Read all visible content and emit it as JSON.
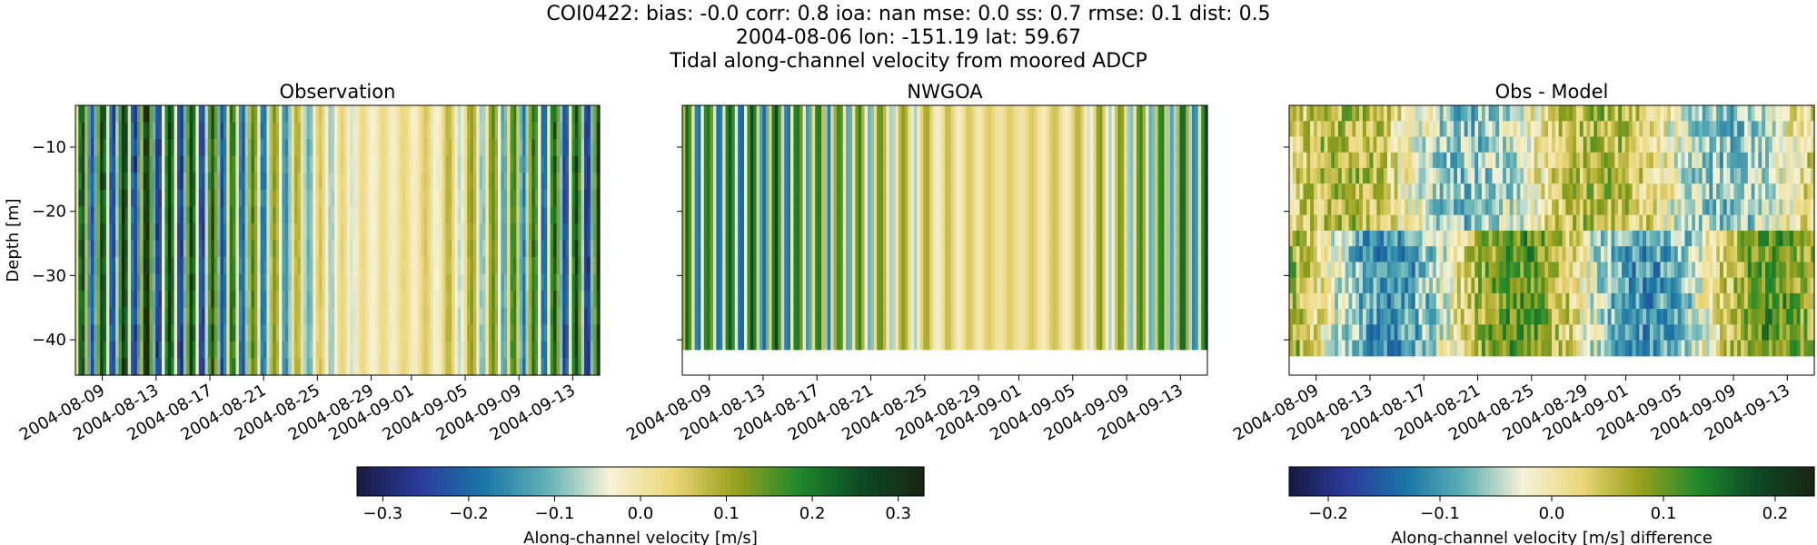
{
  "figure": {
    "title_lines": [
      "COI0422: bias: -0.0  corr: 0.8  ioa: nan  mse: 0.0  ss: 0.7  rmse: 0.1  dist: 0.5",
      "2004-08-06 lon: -151.19 lat: 59.67",
      "Tidal along-channel velocity from moored ADCP"
    ]
  },
  "colorbars": [
    {
      "label": "Along-channel velocity [m/s]",
      "ticks": [
        "−0.3",
        "−0.2",
        "−0.1",
        "0.0",
        "0.1",
        "0.2",
        "0.3"
      ],
      "range": [
        -0.33,
        0.33
      ]
    },
    {
      "label": "Along-channel velocity [m/s] difference",
      "ticks": [
        "−0.2",
        "−0.1",
        "0.0",
        "0.1",
        "0.2"
      ],
      "range": [
        -0.235,
        0.235
      ]
    }
  ],
  "colormap": [
    "#171a3e",
    "#2b3b9c",
    "#1a75a6",
    "#5fb0b5",
    "#f5f3d8",
    "#ecd77a",
    "#9aa11c",
    "#1f8a2c",
    "#0d4a25",
    "#172414"
  ],
  "chart_data": [
    {
      "type": "heatmap",
      "title": "Observation",
      "xlabel": "",
      "ylabel": "Depth [m]",
      "x_ticks": [
        "2004-08-09",
        "2004-08-13",
        "2004-08-17",
        "2004-08-21",
        "2004-08-25",
        "2004-08-29",
        "2004-09-01",
        "2004-09-05",
        "2004-09-09",
        "2004-09-13"
      ],
      "y_ticks": [
        "−10",
        "−20",
        "−30",
        "−40"
      ],
      "xlim": [
        "2004-08-07",
        "2004-09-15"
      ],
      "ylim": [
        -45.5,
        -3.5
      ],
      "data_depth_range": [
        -45.5,
        -3.5
      ],
      "value_range": [
        -0.33,
        0.33
      ],
      "colorbar": 0
    },
    {
      "type": "heatmap",
      "title": "NWGOA",
      "xlabel": "",
      "ylabel": "",
      "x_ticks": [
        "2004-08-09",
        "2004-08-13",
        "2004-08-17",
        "2004-08-21",
        "2004-08-25",
        "2004-08-29",
        "2004-09-01",
        "2004-09-05",
        "2004-09-09",
        "2004-09-13"
      ],
      "y_ticks": [],
      "xlim": [
        "2004-08-07",
        "2004-09-15"
      ],
      "ylim": [
        -45.5,
        -3.5
      ],
      "data_depth_range": [
        -41.5,
        -3.5
      ],
      "value_range": [
        -0.33,
        0.33
      ],
      "colorbar": 0
    },
    {
      "type": "heatmap",
      "title": "Obs - Model",
      "xlabel": "",
      "ylabel": "",
      "x_ticks": [
        "2004-08-09",
        "2004-08-13",
        "2004-08-17",
        "2004-08-21",
        "2004-08-25",
        "2004-08-29",
        "2004-09-01",
        "2004-09-05",
        "2004-09-09",
        "2004-09-13"
      ],
      "y_ticks": [],
      "xlim": [
        "2004-08-07",
        "2004-09-15"
      ],
      "ylim": [
        -45.5,
        -3.5
      ],
      "data_depth_range": [
        -42.5,
        -3.5
      ],
      "value_range": [
        -0.235,
        0.235
      ],
      "colorbar": 1
    }
  ]
}
